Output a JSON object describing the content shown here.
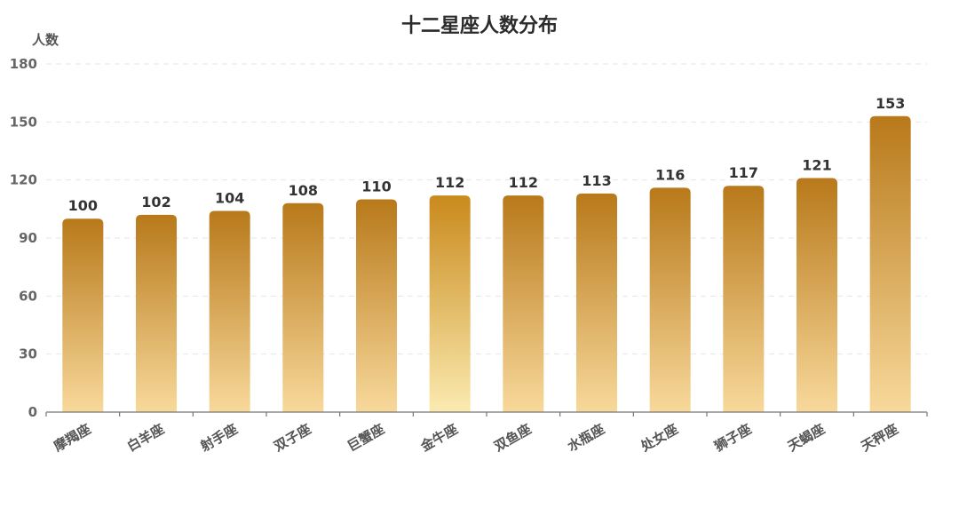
{
  "chart_data": {
    "type": "bar",
    "title": "十二星座人数分布",
    "xlabel": "",
    "ylabel": "人数",
    "categories": [
      "摩羯座",
      "白羊座",
      "射手座",
      "双子座",
      "巨蟹座",
      "金牛座",
      "双鱼座",
      "水瓶座",
      "处女座",
      "狮子座",
      "天蝎座",
      "天秤座"
    ],
    "values": [
      100,
      102,
      104,
      108,
      110,
      112,
      112,
      113,
      116,
      117,
      121,
      153
    ],
    "ylim": [
      0,
      180
    ],
    "yticks": [
      0,
      30,
      60,
      90,
      120,
      150,
      180
    ],
    "grid": true,
    "data_labels": true,
    "colors": {
      "bar_top": "#b8791a",
      "bar_bottom": "#f8d99b",
      "highlight_top": "#c98a1c",
      "highlight_bottom": "#fbeab0"
    },
    "highlight_category": "金牛座"
  }
}
